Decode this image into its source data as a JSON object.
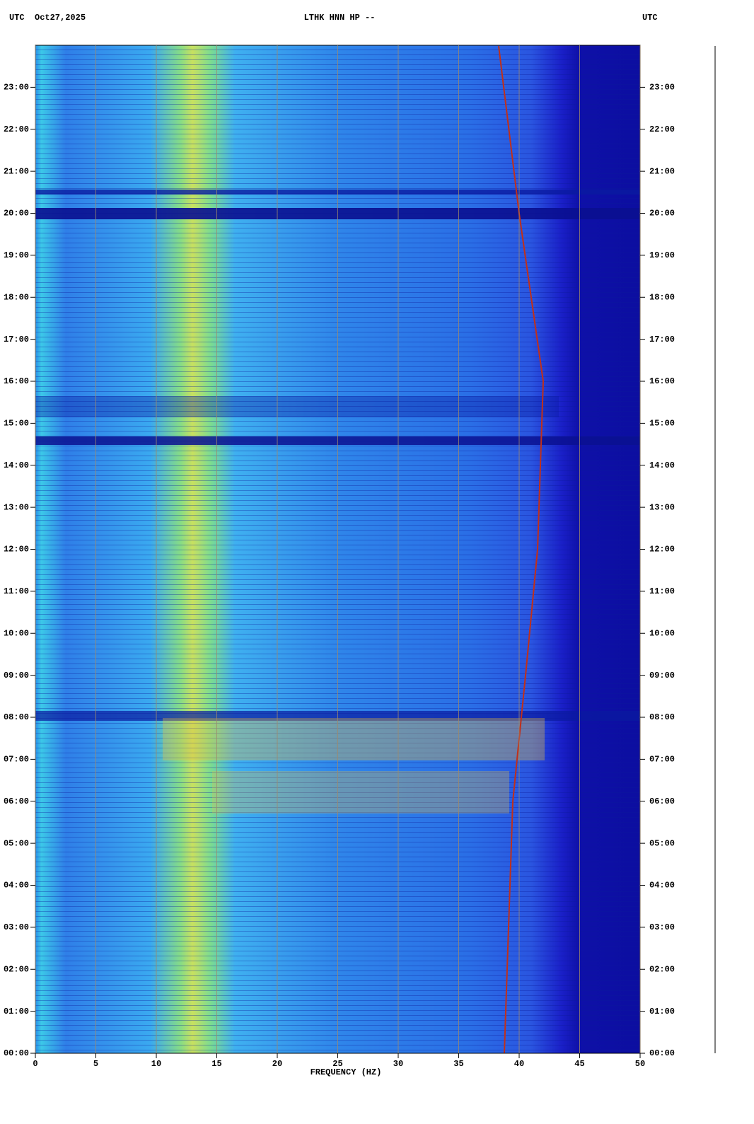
{
  "chart_data": {
    "type": "spectrogram",
    "title": "LTHK HNN HP --",
    "left_header": "UTC  Oct27,2025",
    "right_header": "UTC",
    "x_label": "FREQUENCY (HZ)",
    "xlim": [
      0,
      50
    ],
    "xticks": [
      0,
      5,
      10,
      15,
      20,
      25,
      30,
      35,
      40,
      45,
      50
    ],
    "ylim": [
      0,
      24
    ],
    "yticks": [
      {
        "value": 0,
        "label": "00:00"
      },
      {
        "value": 1,
        "label": "01:00"
      },
      {
        "value": 2,
        "label": "02:00"
      },
      {
        "value": 3,
        "label": "03:00"
      },
      {
        "value": 4,
        "label": "04:00"
      },
      {
        "value": 5,
        "label": "05:00"
      },
      {
        "value": 6,
        "label": "06:00"
      },
      {
        "value": 7,
        "label": "07:00"
      },
      {
        "value": 8,
        "label": "08:00"
      },
      {
        "value": 9,
        "label": "09:00"
      },
      {
        "value": 10,
        "label": "10:00"
      },
      {
        "value": 11,
        "label": "11:00"
      },
      {
        "value": 12,
        "label": "12:00"
      },
      {
        "value": 13,
        "label": "13:00"
      },
      {
        "value": 14,
        "label": "14:00"
      },
      {
        "value": 15,
        "label": "15:00"
      },
      {
        "value": 16,
        "label": "16:00"
      },
      {
        "value": 17,
        "label": "17:00"
      },
      {
        "value": 18,
        "label": "18:00"
      },
      {
        "value": 19,
        "label": "19:00"
      },
      {
        "value": 20,
        "label": "20:00"
      },
      {
        "value": 21,
        "label": "21:00"
      },
      {
        "value": 22,
        "label": "22:00"
      },
      {
        "value": 23,
        "label": "23:00"
      }
    ],
    "grid": true
  }
}
